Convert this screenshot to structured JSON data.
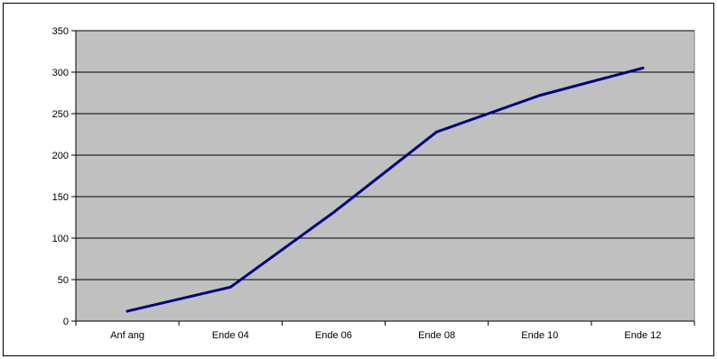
{
  "chart_data": {
    "type": "line",
    "title": "",
    "xlabel": "",
    "ylabel": "",
    "categories": [
      "Anf ang",
      "Ende 04",
      "Ende 06",
      "Ende 08",
      "Ende 10",
      "Ende 12"
    ],
    "x": [
      "Anf ang",
      "Ende 04",
      "Ende 06",
      "Ende 08",
      "Ende 10",
      "Ende 12"
    ],
    "series": [
      {
        "values": [
          12,
          41,
          131,
          228,
          272,
          305
        ],
        "color": "#000080"
      }
    ],
    "ylim": [
      0,
      350
    ],
    "yticks": [
      0,
      50,
      100,
      150,
      200,
      250,
      300,
      350
    ],
    "grid": true,
    "legend": "none",
    "plot_background": "#c0c0c0"
  }
}
